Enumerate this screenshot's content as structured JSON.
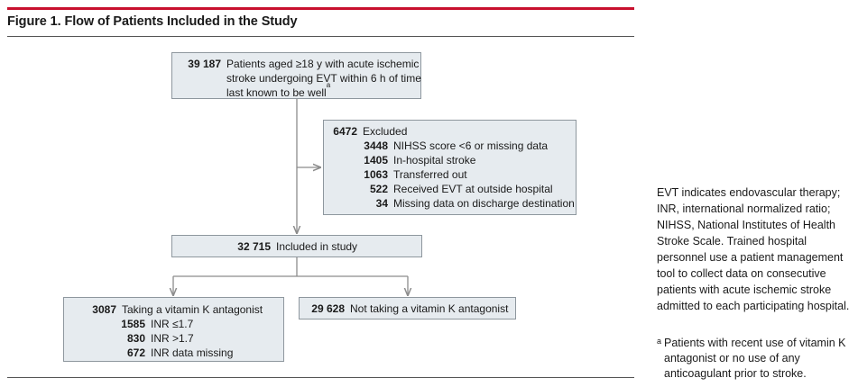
{
  "figure": {
    "title": "Figure 1. Flow of Patients Included in the Study"
  },
  "flow": {
    "enrolled": {
      "count": "39 187",
      "lines": [
        "Patients aged ≥18 y with acute ischemic",
        "stroke undergoing EVT within 6 h of time",
        "last known  to be well"
      ],
      "footnote_mark": "a"
    },
    "excluded": {
      "count": "6472",
      "label": "Excluded",
      "reasons": [
        {
          "count": "3448",
          "label": "NIHSS score <6 or missing data"
        },
        {
          "count": "1405",
          "label": "In-hospital stroke"
        },
        {
          "count": "1063",
          "label": "Transferred out"
        },
        {
          "count": "522",
          "label": "Received EVT at outside hospital"
        },
        {
          "count": "34",
          "label": "Missing data on discharge destination"
        }
      ]
    },
    "included": {
      "count": "32 715",
      "label": "Included in study"
    },
    "vka": {
      "count": "3087",
      "label": "Taking a vitamin K antagonist",
      "subgroups": [
        {
          "count": "1585",
          "label": "INR ≤1.7"
        },
        {
          "count": "830",
          "label": "INR >1.7"
        },
        {
          "count": "672",
          "label": "INR data missing"
        }
      ]
    },
    "no_vka": {
      "count": "29 628",
      "label": "Not taking a vitamin K antagonist"
    }
  },
  "notes": {
    "abbreviations": "EVT indicates endovascular therapy; INR, international normalized ratio; NIHSS, National Institutes of Health Stroke Scale. Trained hospital personnel use a patient management tool to collect data on consecutive patients with acute ischemic stroke admitted to each participating hospital.",
    "footnote_mark": "a",
    "footnote": "Patients with recent use of vitamin K antagonist or no use of any anticoagulant prior to stroke."
  },
  "colors": {
    "title_bar": "#c8102e",
    "box_fill": "#e6ebef",
    "box_border": "#8e979e",
    "arrow": "#8c8c8c"
  }
}
